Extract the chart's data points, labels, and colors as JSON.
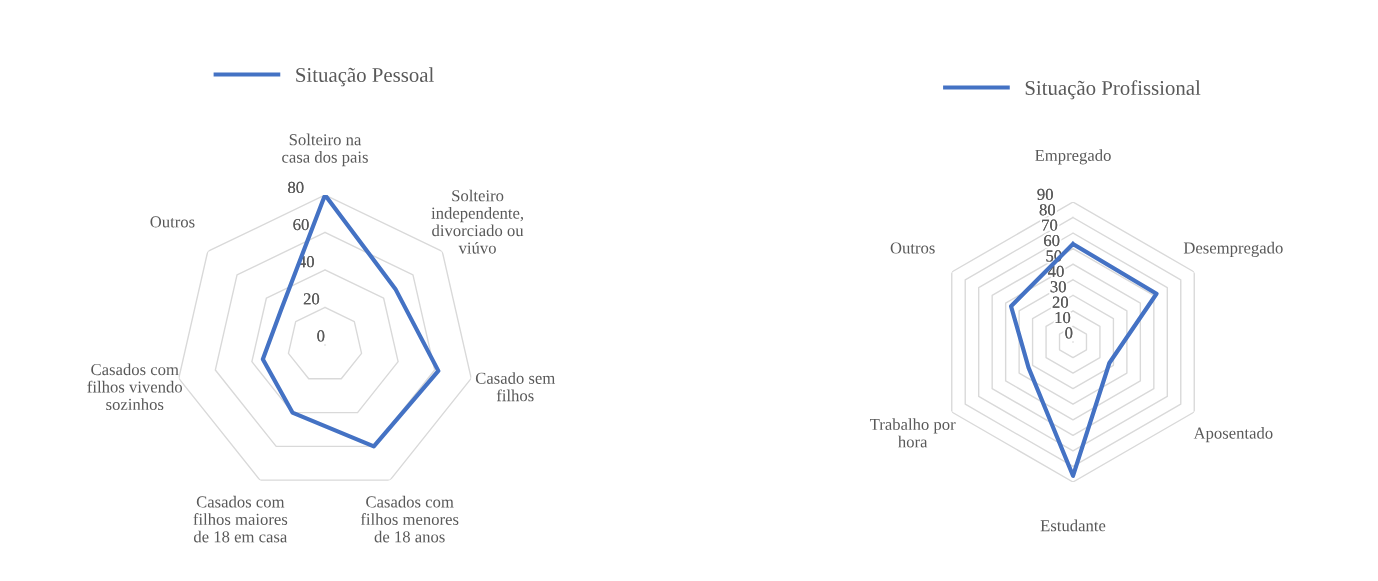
{
  "chart_data": [
    {
      "type": "radar",
      "categories": [
        "Solteiro na\ncasa dos pais",
        "Solteiro\nindependente,\ndivorciado ou\nviúvo",
        "Casado sem\nfilhos",
        "Casados com\nfilhos menores\nde 18 anos",
        "Casados com\nfilhos maiores\nde 18 em casa",
        "Casados com\nfilhos vivendo\nsozinhos",
        "Outros"
      ],
      "series": [
        {
          "name": "Situação Pessoal",
          "color": "#4472c4",
          "values": [
            80,
            48,
            62,
            60,
            40,
            34,
            30
          ]
        }
      ],
      "ylim": [
        0,
        80
      ],
      "yticks": [
        0,
        20,
        40,
        60,
        80
      ],
      "grid": true,
      "legend": "top"
    },
    {
      "type": "radar",
      "categories": [
        "Empregado",
        "Desempregado",
        "Aposentado",
        "Estudante",
        "Trabalho por\nhora",
        "Outros"
      ],
      "series": [
        {
          "name": "Situação Profissional",
          "color": "#4472c4",
          "values": [
            63,
            62,
            27,
            86,
            33,
            46
          ]
        }
      ],
      "ylim": [
        0,
        90
      ],
      "yticks": [
        0,
        10,
        20,
        30,
        40,
        50,
        60,
        70,
        80,
        90
      ],
      "grid": true,
      "legend": "top"
    }
  ]
}
